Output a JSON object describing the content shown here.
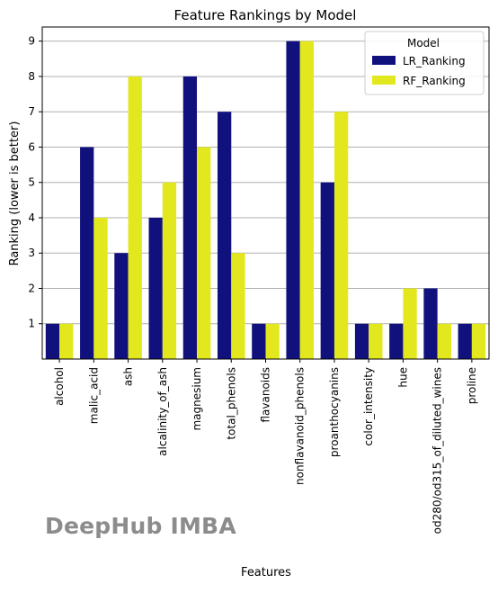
{
  "chart_data": {
    "type": "bar",
    "title": "Feature Rankings by Model",
    "xlabel": "Features",
    "ylabel": "Ranking (lower is better)",
    "categories": [
      "alcohol",
      "malic_acid",
      "ash",
      "alcalinity_of_ash",
      "magnesium",
      "total_phenols",
      "flavanoids",
      "nonflavanoid_phenols",
      "proanthocyanins",
      "color_intensity",
      "hue",
      "od280/od315_of_diluted_wines",
      "proline"
    ],
    "series": [
      {
        "name": "LR_Ranking",
        "color": "#11117d",
        "values": [
          1,
          6,
          3,
          4,
          8,
          7,
          1,
          9,
          5,
          1,
          1,
          2,
          1
        ]
      },
      {
        "name": "RF_Ranking",
        "color": "#e3e81e",
        "values": [
          1,
          4,
          8,
          5,
          6,
          3,
          1,
          9,
          7,
          1,
          2,
          1,
          1
        ]
      }
    ],
    "yticks": [
      "1",
      "2",
      "3",
      "4",
      "5",
      "6",
      "7",
      "8",
      "9"
    ],
    "ylim": [
      0,
      9.4
    ],
    "grid": "y",
    "legend": {
      "title": "Model",
      "placement": "top-right"
    }
  },
  "watermark": "DeepHub IMBA"
}
